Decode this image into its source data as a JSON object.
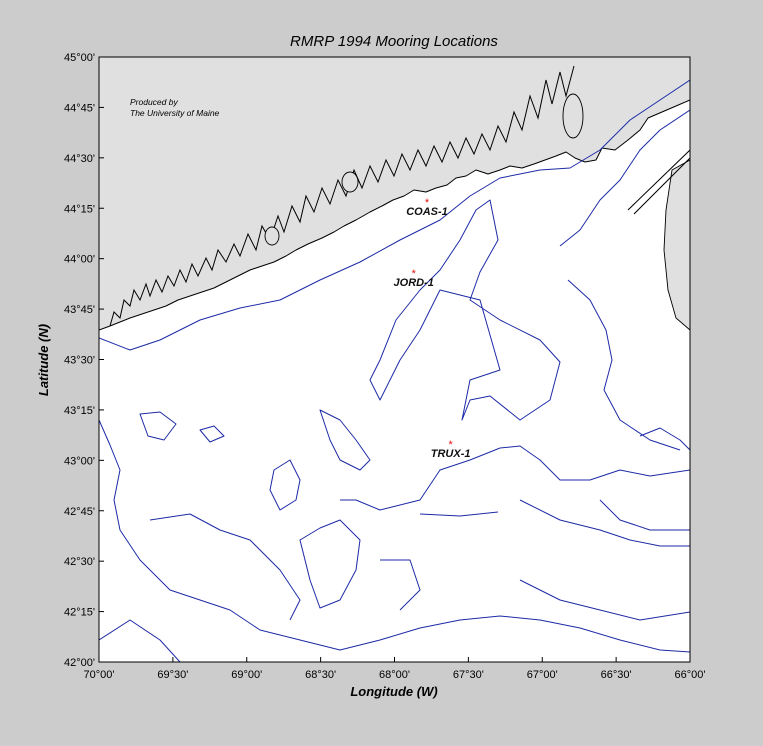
{
  "title": "RMRP 1994 Mooring Locations",
  "xlabel": "Longitude (W)",
  "ylabel": "Latitude (N)",
  "credit": [
    "Produced by",
    "The University of Maine"
  ],
  "x_ticks": [
    "70°00'",
    "69°30'",
    "69°00'",
    "68°30'",
    "68°00'",
    "67°30'",
    "67°00'",
    "66°30'",
    "66°00'"
  ],
  "y_ticks": [
    "45°00'",
    "44°45'",
    "44°30'",
    "44°15'",
    "44°00'",
    "43°45'",
    "43°30'",
    "43°15'",
    "43°00'",
    "42°45'",
    "42°30'",
    "42°15'",
    "42°00'"
  ],
  "stations": [
    {
      "name": "COAS-1",
      "lon": -67.78,
      "lat": 44.28
    },
    {
      "name": "JORD-1",
      "lon": -67.87,
      "lat": 43.93
    },
    {
      "name": "TRUX-1",
      "lon": -67.62,
      "lat": 43.08
    }
  ],
  "colors": {
    "land": "#e0e0e0",
    "contour": "#1d2aa6",
    "station": "#e01010",
    "figure_bg": "#cccccc"
  }
}
